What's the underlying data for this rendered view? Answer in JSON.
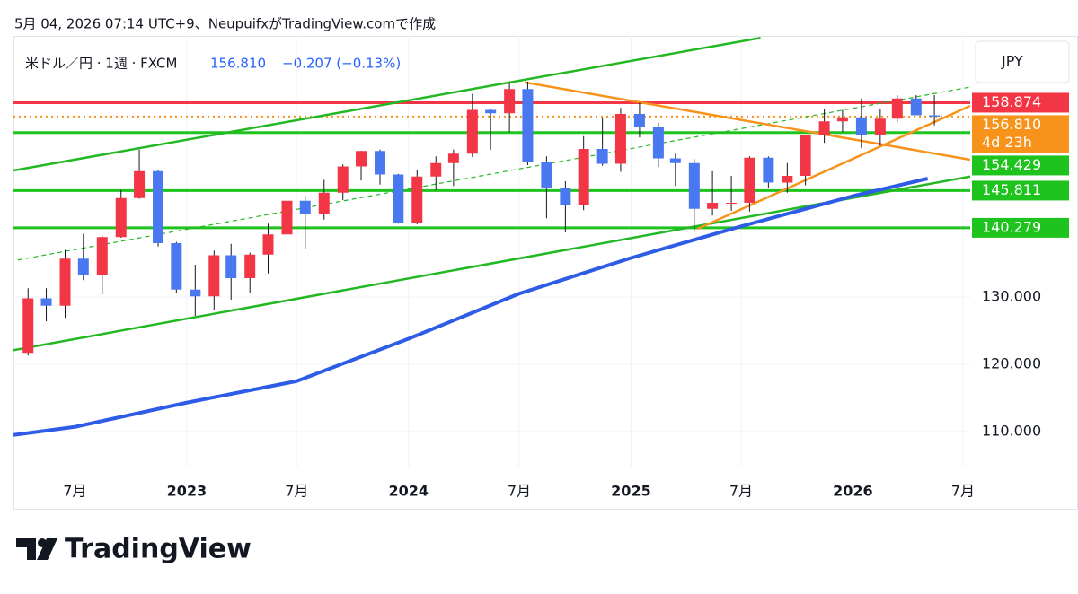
{
  "header": "5月 04, 2026 07:14 UTC+9、NeupuifxがTradingView.comで作成",
  "legend": {
    "symbol": "米ドル／円 · 1週 · FXCM",
    "price": "156.810",
    "change": "−0.207 (−0.13%)"
  },
  "currency": "JPY",
  "footer": "TradingView",
  "chart_data": {
    "type": "candlestick",
    "up_color": "#f23645",
    "down_color": "#4a78f0",
    "wick_color": "#131722",
    "x": [
      "2022-04",
      "2022-05",
      "2022-06",
      "2022-07",
      "2022-08",
      "2022-09",
      "2022-10",
      "2022-11",
      "2022-12",
      "2023-01",
      "2023-02",
      "2023-03",
      "2023-04",
      "2023-05",
      "2023-06",
      "2023-07",
      "2023-08",
      "2023-09",
      "2023-10",
      "2023-11",
      "2023-12",
      "2024-01",
      "2024-02",
      "2024-03",
      "2024-04",
      "2024-05",
      "2024-06",
      "2024-07",
      "2024-08",
      "2024-09",
      "2024-10",
      "2024-11",
      "2024-12",
      "2025-01",
      "2025-02",
      "2025-03",
      "2025-04",
      "2025-05",
      "2025-06",
      "2025-07",
      "2025-08",
      "2025-09",
      "2025-10",
      "2025-11",
      "2025-12",
      "2026-01",
      "2026-02",
      "2026-03",
      "2026-04",
      "2026-05"
    ],
    "open": [
      121.7,
      129.8,
      128.7,
      135.7,
      133.2,
      138.9,
      144.7,
      148.7,
      138.0,
      131.1,
      130.1,
      136.2,
      132.8,
      136.3,
      139.3,
      144.3,
      142.3,
      145.5,
      149.4,
      151.7,
      148.2,
      141.0,
      147.9,
      149.9,
      151.3,
      157.8,
      157.3,
      160.9,
      150.0,
      146.2,
      143.6,
      152.0,
      149.8,
      157.2,
      155.2,
      150.6,
      149.9,
      143.1,
      144.0,
      144.0,
      150.7,
      147.0,
      148.0,
      154.0,
      156.1,
      156.7,
      154.0,
      156.5,
      159.5,
      157.0
    ],
    "high": [
      131.3,
      131.3,
      137.0,
      139.4,
      139.1,
      145.9,
      151.9,
      148.8,
      138.2,
      134.8,
      136.9,
      137.9,
      136.6,
      140.9,
      145.0,
      145.0,
      147.4,
      149.7,
      151.7,
      151.9,
      148.3,
      148.8,
      150.9,
      151.9,
      160.2,
      157.9,
      161.9,
      162.0,
      150.9,
      147.2,
      153.9,
      156.7,
      158.1,
      158.9,
      155.9,
      151.3,
      150.5,
      148.7,
      148.0,
      150.9,
      150.9,
      149.9,
      154.0,
      157.9,
      157.8,
      159.5,
      158.0,
      160.0,
      160.0,
      160.0
    ],
    "low": [
      121.3,
      126.4,
      126.9,
      132.5,
      130.4,
      138.8,
      144.6,
      137.5,
      130.6,
      127.2,
      128.1,
      129.6,
      130.6,
      133.5,
      138.4,
      137.2,
      141.5,
      144.4,
      147.3,
      146.7,
      140.9,
      140.8,
      145.9,
      146.5,
      150.8,
      151.9,
      154.5,
      149.6,
      141.7,
      139.6,
      142.9,
      149.5,
      148.6,
      153.7,
      149.3,
      146.5,
      139.9,
      142.1,
      142.8,
      142.7,
      146.2,
      145.5,
      146.6,
      152.9,
      154.5,
      152.1,
      152.5,
      156.0,
      157.0,
      155.5
    ],
    "close": [
      129.8,
      128.7,
      135.7,
      133.2,
      138.9,
      144.7,
      148.7,
      138.0,
      131.1,
      130.1,
      136.2,
      132.8,
      136.3,
      139.3,
      144.3,
      142.3,
      145.5,
      149.4,
      151.7,
      148.2,
      141.0,
      147.9,
      149.9,
      151.3,
      157.8,
      157.3,
      160.9,
      150.0,
      146.2,
      143.6,
      152.0,
      149.8,
      157.2,
      155.2,
      150.6,
      149.9,
      143.1,
      144.0,
      144.0,
      150.7,
      147.0,
      148.0,
      154.0,
      156.1,
      156.7,
      154.0,
      156.5,
      159.5,
      157.0,
      156.81
    ],
    "moving_average": {
      "color": "#2e5ce6",
      "x": [
        "2022-03-22",
        "2022-07-01",
        "2023-01-01",
        "2023-07-01",
        "2024-01-01",
        "2024-07-01",
        "2025-01-01",
        "2025-07-01",
        "2026-01-01",
        "2026-05-04"
      ],
      "values": [
        109.5,
        110.7,
        114.3,
        117.5,
        123.8,
        130.5,
        135.8,
        140.5,
        145.0,
        147.6
      ]
    },
    "trendlines": [
      {
        "color": "#22b822",
        "dashed": false,
        "x": [
          "2022-03-22",
          "2025-08-02"
        ],
        "values": [
          148.8,
          168.5
        ]
      },
      {
        "color": "#22b822",
        "dashed": false,
        "x": [
          "2022-03-22",
          "2026-07-13"
        ],
        "values": [
          122.1,
          147.9
        ]
      },
      {
        "color": "#22b822",
        "dashed": true,
        "x": [
          "2022-03-29",
          "2026-07-13"
        ],
        "values": [
          135.5,
          161.2
        ]
      },
      {
        "color": "#f7931a",
        "dashed": false,
        "x": [
          "2024-07-10",
          "2026-07-13"
        ],
        "values": [
          161.9,
          150.4
        ]
      },
      {
        "color": "#f7931a",
        "dashed": false,
        "x": [
          "2025-04-20",
          "2026-07-13"
        ],
        "values": [
          140.1,
          158.4
        ]
      }
    ],
    "levels": [
      {
        "value": 158.874,
        "color": "#f23645"
      },
      {
        "value": 154.429,
        "color": "#1ec31e"
      },
      {
        "value": 145.811,
        "color": "#1ec31e"
      },
      {
        "value": 140.279,
        "color": "#1ec31e"
      }
    ],
    "last_price": {
      "value": 156.81,
      "label": "156.810",
      "countdown": "4d 23h",
      "color": "#f7931a"
    },
    "xlim": [
      "2022-03-22",
      "2026-07-13"
    ],
    "xticks": [
      {
        "value": "2022-07-01",
        "label": "7月"
      },
      {
        "value": "2023-01-01",
        "label": "2023"
      },
      {
        "value": "2023-07-01",
        "label": "7月"
      },
      {
        "value": "2024-01-01",
        "label": "2024"
      },
      {
        "value": "2024-07-01",
        "label": "7月"
      },
      {
        "value": "2025-01-01",
        "label": "2025"
      },
      {
        "value": "2025-07-01",
        "label": "7月"
      },
      {
        "value": "2026-01-01",
        "label": "2026"
      },
      {
        "value": "2026-07-01",
        "label": "7月"
      }
    ],
    "ylim": [
      104.8,
      168.8
    ],
    "yticks": [
      {
        "value": 110,
        "label": "110.000"
      },
      {
        "value": 120,
        "label": "120.000"
      },
      {
        "value": 130,
        "label": "130.000"
      }
    ],
    "grid": true
  }
}
